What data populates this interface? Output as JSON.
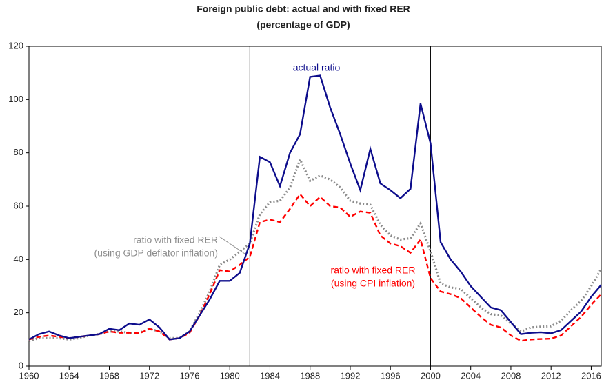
{
  "chart_data": {
    "type": "line",
    "title": "Foreign public debt: actual and with fixed RER",
    "subtitle": "(percentage of GDP)",
    "x": [
      1960,
      1961,
      1962,
      1963,
      1964,
      1965,
      1966,
      1967,
      1968,
      1969,
      1970,
      1971,
      1972,
      1973,
      1974,
      1975,
      1976,
      1977,
      1978,
      1979,
      1980,
      1981,
      1982,
      1983,
      1984,
      1985,
      1986,
      1987,
      1988,
      1989,
      1990,
      1991,
      1992,
      1993,
      1994,
      1995,
      1996,
      1997,
      1998,
      1999,
      2000,
      2001,
      2002,
      2003,
      2004,
      2005,
      2006,
      2007,
      2008,
      2009,
      2010,
      2011,
      2012,
      2013,
      2014,
      2015,
      2016,
      2017
    ],
    "series": [
      {
        "name": "actual ratio",
        "color": "#0d0d8c",
        "style": "solid",
        "values": [
          10,
          12,
          13,
          11.5,
          10.5,
          11,
          11.5,
          12,
          14,
          13.5,
          16,
          15.5,
          17.5,
          14.5,
          10,
          10.5,
          13,
          19,
          25,
          32,
          32,
          35,
          46,
          78.5,
          76.5,
          67.5,
          80,
          87,
          108.5,
          109,
          97,
          87,
          76,
          66,
          81.5,
          68.5,
          66,
          63,
          66.5,
          98.5,
          83.5,
          46.5,
          40,
          35.5,
          30,
          26,
          22,
          21,
          16.5,
          12,
          12.5,
          12.7,
          12.3,
          13.5,
          17,
          20.5,
          26,
          30.5
        ]
      },
      {
        "name": "ratio with fixed RER",
        "subname": "(using GDP deflator inflation)",
        "color": "#8c8c8c",
        "style": "dotted",
        "values": [
          9.5,
          10.5,
          10.5,
          10.5,
          10,
          10.5,
          11.5,
          12,
          13,
          13,
          12.5,
          12.5,
          14,
          13,
          10.5,
          10.5,
          13,
          20,
          28,
          38,
          40,
          43,
          46,
          57,
          61.5,
          62,
          67,
          77.5,
          69.5,
          71.5,
          70,
          67,
          62,
          61,
          60.5,
          53,
          49,
          47.5,
          48,
          53.5,
          43,
          31,
          29.5,
          29,
          25.5,
          22,
          19.5,
          19,
          16,
          13,
          14.5,
          14.8,
          15,
          17,
          21,
          24.5,
          30,
          36.5
        ]
      },
      {
        "name": "ratio with fixed RER",
        "subname": "(using CPI inflation)",
        "color": "#ff0000",
        "style": "dashed",
        "values": [
          10,
          11,
          11.5,
          11,
          10.5,
          11,
          11.5,
          12,
          13,
          12.5,
          12.5,
          12.3,
          14,
          13,
          10,
          10.5,
          12.5,
          19,
          27,
          36,
          35.5,
          38,
          41,
          54,
          55,
          54,
          59,
          64.5,
          60,
          63.5,
          60,
          59.5,
          56,
          58,
          57.5,
          49,
          46,
          45,
          42.5,
          47.5,
          33,
          28,
          27,
          25.5,
          22,
          18.5,
          15.5,
          14.5,
          11.5,
          9.5,
          10,
          10.2,
          10.3,
          11.5,
          15,
          18.5,
          23,
          27
        ]
      }
    ],
    "xlim": [
      1960,
      2017
    ],
    "xticks": [
      1960,
      1964,
      1968,
      1972,
      1976,
      1980,
      1984,
      1988,
      1992,
      1996,
      2000,
      2004,
      2008,
      2012,
      2016
    ],
    "ylim": [
      0,
      120
    ],
    "yticks": [
      0,
      20,
      40,
      60,
      80,
      100,
      120
    ],
    "vlines": [
      1982,
      2000
    ],
    "grid": false
  }
}
